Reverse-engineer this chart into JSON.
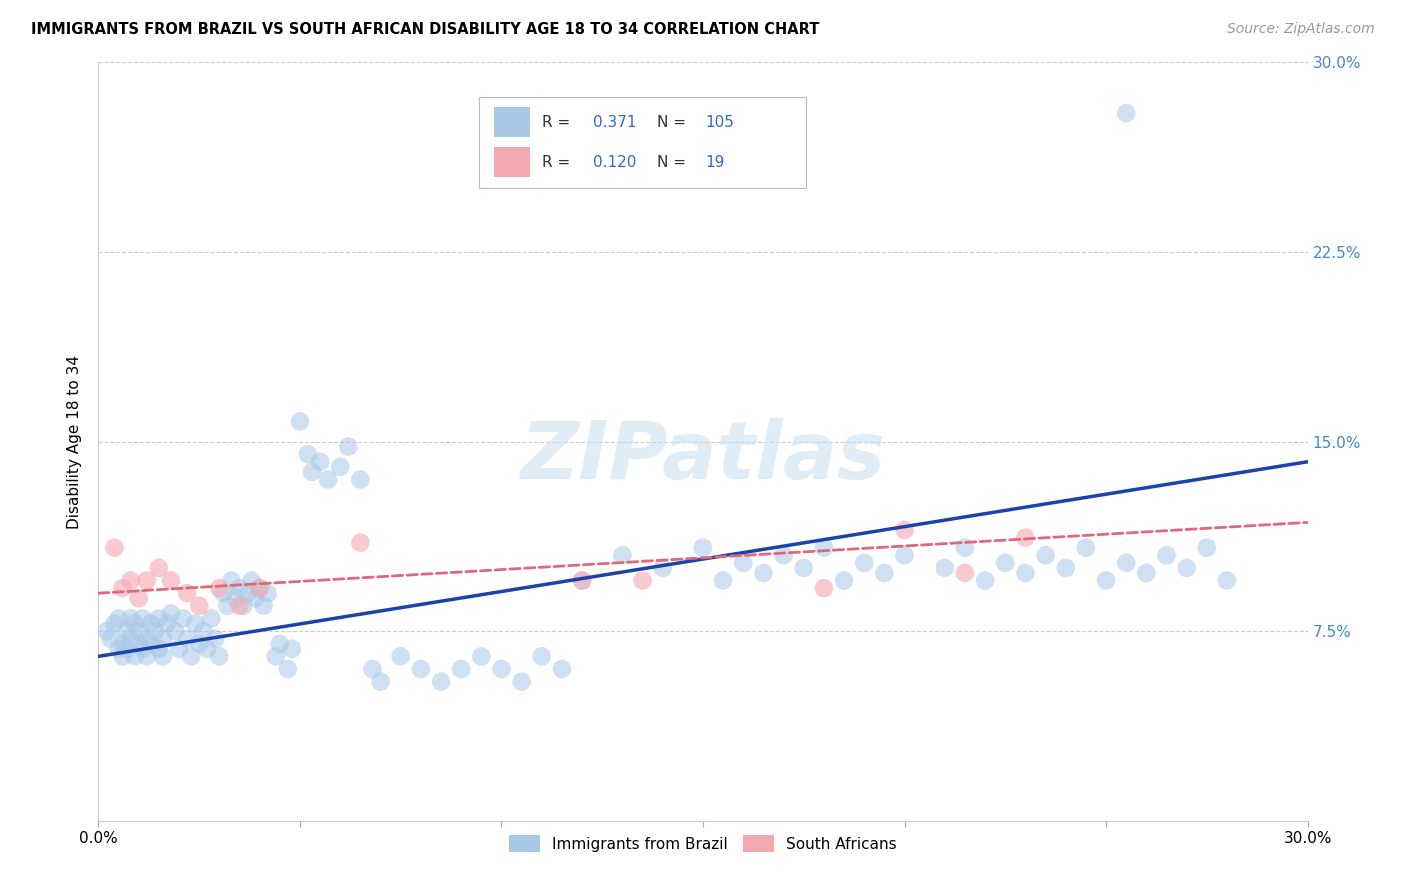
{
  "title": "IMMIGRANTS FROM BRAZIL VS SOUTH AFRICAN DISABILITY AGE 18 TO 34 CORRELATION CHART",
  "source": "Source: ZipAtlas.com",
  "ylabel": "Disability Age 18 to 34",
  "ytick_values": [
    0.075,
    0.15,
    0.225,
    0.3
  ],
  "xlim": [
    0.0,
    0.3
  ],
  "ylim": [
    0.0,
    0.3
  ],
  "brazil_R": 0.371,
  "brazil_N": 105,
  "sa_R": 0.12,
  "sa_N": 19,
  "brazil_color": "#a8c8e8",
  "sa_color": "#f4a8b0",
  "brazil_line_color": "#1a44aa",
  "sa_line_color": "#e06878",
  "brazil_line_x0": 0.0,
  "brazil_line_y0": 0.065,
  "brazil_line_x1": 0.3,
  "brazil_line_y1": 0.142,
  "sa_line_x0": 0.0,
  "sa_line_y0": 0.09,
  "sa_line_x1": 0.3,
  "sa_line_y1": 0.118,
  "watermark_text": "ZIPatlas",
  "legend_brazil_label": "Immigrants from Brazil",
  "legend_sa_label": "South Africans",
  "grid_color": "#cccccc",
  "background_color": "#ffffff",
  "brazil_scatter_x": [
    0.002,
    0.003,
    0.004,
    0.005,
    0.005,
    0.006,
    0.006,
    0.007,
    0.007,
    0.008,
    0.008,
    0.009,
    0.009,
    0.01,
    0.01,
    0.011,
    0.011,
    0.012,
    0.012,
    0.013,
    0.013,
    0.014,
    0.015,
    0.015,
    0.016,
    0.016,
    0.017,
    0.018,
    0.019,
    0.02,
    0.021,
    0.022,
    0.023,
    0.024,
    0.025,
    0.026,
    0.027,
    0.028,
    0.029,
    0.03,
    0.031,
    0.032,
    0.033,
    0.034,
    0.035,
    0.036,
    0.037,
    0.038,
    0.039,
    0.04,
    0.041,
    0.042,
    0.044,
    0.045,
    0.047,
    0.048,
    0.05,
    0.052,
    0.053,
    0.055,
    0.057,
    0.06,
    0.062,
    0.065,
    0.068,
    0.07,
    0.075,
    0.08,
    0.085,
    0.09,
    0.095,
    0.1,
    0.105,
    0.11,
    0.115,
    0.12,
    0.13,
    0.14,
    0.15,
    0.155,
    0.16,
    0.165,
    0.17,
    0.175,
    0.18,
    0.185,
    0.19,
    0.195,
    0.2,
    0.21,
    0.215,
    0.22,
    0.225,
    0.23,
    0.235,
    0.24,
    0.245,
    0.25,
    0.255,
    0.26,
    0.265,
    0.27,
    0.275,
    0.28,
    0.255
  ],
  "brazil_scatter_y": [
    0.075,
    0.072,
    0.078,
    0.068,
    0.08,
    0.065,
    0.07,
    0.075,
    0.068,
    0.072,
    0.08,
    0.065,
    0.078,
    0.07,
    0.075,
    0.068,
    0.08,
    0.072,
    0.065,
    0.078,
    0.07,
    0.075,
    0.068,
    0.08,
    0.072,
    0.065,
    0.078,
    0.082,
    0.075,
    0.068,
    0.08,
    0.072,
    0.065,
    0.078,
    0.07,
    0.075,
    0.068,
    0.08,
    0.072,
    0.065,
    0.09,
    0.085,
    0.095,
    0.088,
    0.092,
    0.085,
    0.09,
    0.095,
    0.088,
    0.092,
    0.085,
    0.09,
    0.065,
    0.07,
    0.06,
    0.068,
    0.158,
    0.145,
    0.138,
    0.142,
    0.135,
    0.14,
    0.148,
    0.135,
    0.06,
    0.055,
    0.065,
    0.06,
    0.055,
    0.06,
    0.065,
    0.06,
    0.055,
    0.065,
    0.06,
    0.095,
    0.105,
    0.1,
    0.108,
    0.095,
    0.102,
    0.098,
    0.105,
    0.1,
    0.108,
    0.095,
    0.102,
    0.098,
    0.105,
    0.1,
    0.108,
    0.095,
    0.102,
    0.098,
    0.105,
    0.1,
    0.108,
    0.095,
    0.102,
    0.098,
    0.105,
    0.1,
    0.108,
    0.095,
    0.28
  ],
  "sa_scatter_x": [
    0.004,
    0.006,
    0.008,
    0.01,
    0.012,
    0.015,
    0.018,
    0.022,
    0.025,
    0.03,
    0.035,
    0.04,
    0.065,
    0.12,
    0.135,
    0.18,
    0.2,
    0.215,
    0.23
  ],
  "sa_scatter_y": [
    0.108,
    0.092,
    0.095,
    0.088,
    0.095,
    0.1,
    0.095,
    0.09,
    0.085,
    0.092,
    0.085,
    0.092,
    0.11,
    0.095,
    0.095,
    0.092,
    0.115,
    0.098,
    0.112
  ]
}
